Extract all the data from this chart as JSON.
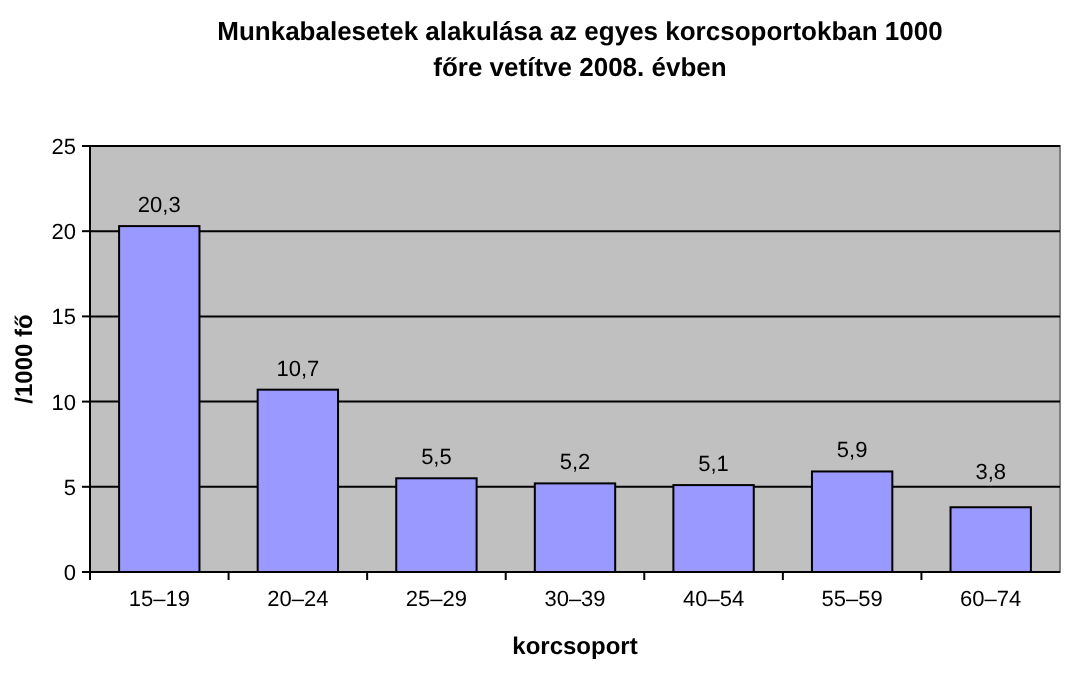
{
  "chart_data": {
    "type": "bar",
    "title": "Munkabalesetek alakulása az egyes korcsoportokban 1000 főre vetítve 2008. évben",
    "xlabel": "korcsoport",
    "ylabel": "/1000 fő",
    "categories": [
      "15–19",
      "20–24",
      "25–29",
      "30–39",
      "40–54",
      "55–59",
      "60–74"
    ],
    "values": [
      20.3,
      10.7,
      5.5,
      5.2,
      5.1,
      5.9,
      3.8
    ],
    "value_labels": [
      "20,3",
      "10,7",
      "5,5",
      "5,2",
      "5,1",
      "5,9",
      "3,8"
    ],
    "color": "#9999ff",
    "ylim": [
      0,
      25
    ],
    "yticks": [
      0,
      5,
      10,
      15,
      20,
      25
    ],
    "grid": "y"
  }
}
